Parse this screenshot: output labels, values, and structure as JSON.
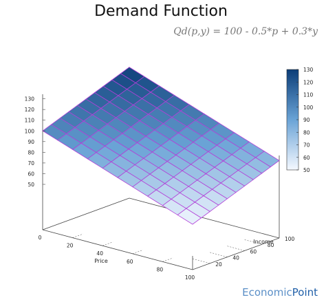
{
  "chart_data": {
    "type": "surface",
    "title": "Demand Function",
    "formula": "Qd(p,y) = 100 - 0.5*p + 0.3*y",
    "x_axis": {
      "label": "Price",
      "range": [
        0,
        100
      ],
      "ticks": [
        "0",
        "20",
        "40",
        "60",
        "80",
        "100"
      ]
    },
    "y_axis": {
      "label": "Income",
      "range": [
        0,
        100
      ],
      "ticks": [
        "20",
        "40",
        "60",
        "80",
        "100"
      ]
    },
    "z_axis": {
      "label": "",
      "range": [
        50,
        130
      ],
      "ticks": [
        "50",
        "60",
        "70",
        "80",
        "90",
        "100",
        "110",
        "120",
        "130"
      ]
    },
    "grid_steps": 10,
    "surface_corners": [
      {
        "p": 0,
        "y": 0,
        "q": 100
      },
      {
        "p": 100,
        "y": 0,
        "q": 50
      },
      {
        "p": 0,
        "y": 100,
        "q": 130
      },
      {
        "p": 100,
        "y": 100,
        "q": 80
      }
    ],
    "colorbar": {
      "range": [
        50,
        130
      ],
      "ticks": [
        "50",
        "60",
        "70",
        "80",
        "90",
        "100",
        "110",
        "120",
        "130"
      ],
      "low_color": "#f4f8ff",
      "high_color": "#0b3d78"
    },
    "mesh_color": "#b23fd8"
  },
  "watermark": {
    "part1": "Economic",
    "part2": "Point"
  }
}
